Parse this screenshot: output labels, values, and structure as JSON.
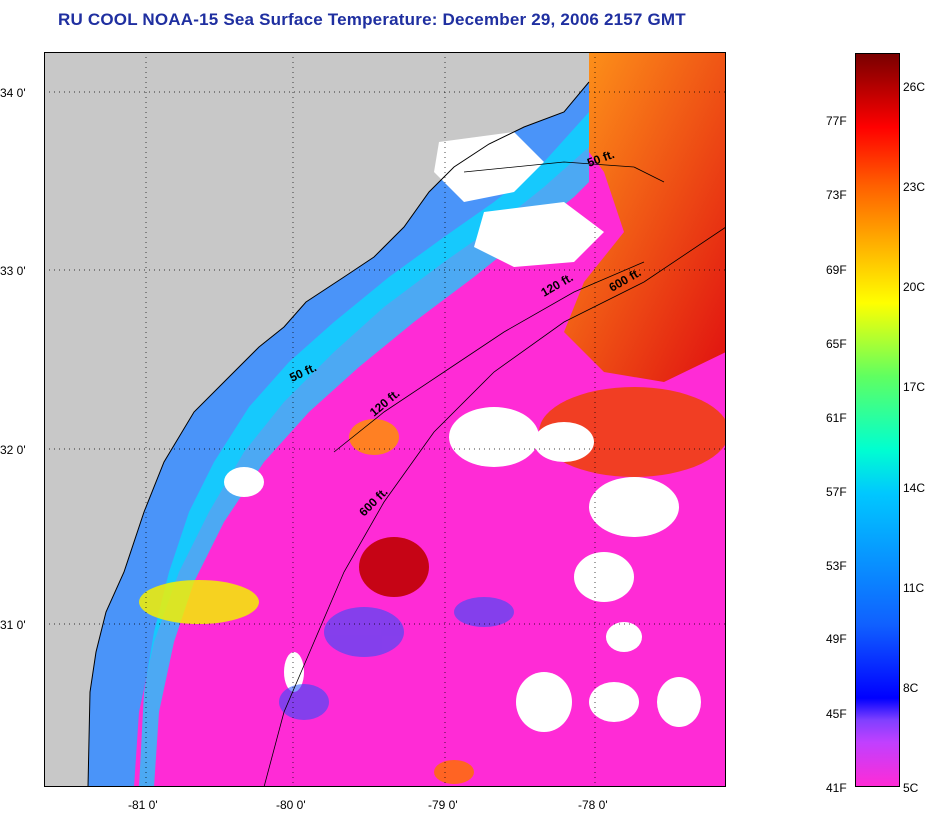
{
  "title": "RU COOL  NOAA-15  Sea Surface Temperature:  December 29, 2006 2157 GMT",
  "map": {
    "latitude_labels": [
      "34 0'",
      "33 0'",
      "32 0'",
      "31 0'"
    ],
    "longitude_labels": [
      "-81 0'",
      "-80 0'",
      "-79 0'",
      "-78 0'"
    ],
    "isobath_labels": [
      "50 ft.",
      "120 ft.",
      "600 ft.",
      "50 ft.",
      "120 ft.",
      "600 ft."
    ],
    "colors": {
      "land": "#c8c8c8",
      "cloud": "#ffffff",
      "cold": "#ff2bd6",
      "warm": "#d10000",
      "grid": "#000000"
    }
  },
  "colorbar": {
    "fahrenheit_labels": [
      "77F",
      "73F",
      "69F",
      "65F",
      "61F",
      "57F",
      "53F",
      "49F",
      "45F",
      "41F"
    ],
    "celsius_labels": [
      "26C",
      "23C",
      "20C",
      "17C",
      "14C",
      "11C",
      "8C",
      "5C"
    ]
  }
}
